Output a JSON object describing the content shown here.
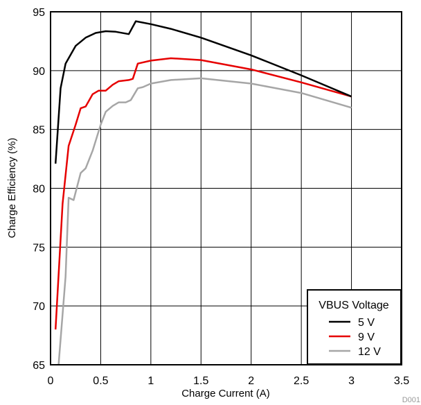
{
  "chart_data": {
    "type": "line",
    "xlabel": "Charge Current (A)",
    "ylabel": "Charge Efficiency (%)",
    "xlim": [
      0,
      3.5
    ],
    "ylim": [
      65,
      95
    ],
    "xticks": [
      "0",
      "0.5",
      "1",
      "1.5",
      "2",
      "2.5",
      "3",
      "3.5"
    ],
    "yticks": [
      "65",
      "70",
      "75",
      "80",
      "85",
      "90",
      "95"
    ],
    "grid": true,
    "legend_position": "bottom-right",
    "legend_title": "VBUS Voltage",
    "figure_id": "D001",
    "series": [
      {
        "name": "5 V",
        "color": "#000000",
        "points": [
          [
            0.05,
            82.1
          ],
          [
            0.1,
            88.5
          ],
          [
            0.15,
            90.6
          ],
          [
            0.25,
            92.1
          ],
          [
            0.35,
            92.8
          ],
          [
            0.45,
            93.2
          ],
          [
            0.55,
            93.35
          ],
          [
            0.65,
            93.3
          ],
          [
            0.78,
            93.1
          ],
          [
            0.85,
            94.2
          ],
          [
            1.0,
            93.95
          ],
          [
            1.2,
            93.55
          ],
          [
            1.5,
            92.8
          ],
          [
            2.0,
            91.3
          ],
          [
            2.5,
            89.6
          ],
          [
            3.0,
            87.8
          ]
        ]
      },
      {
        "name": "9 V",
        "color": "#e60000",
        "points": [
          [
            0.05,
            68.0
          ],
          [
            0.12,
            78.7
          ],
          [
            0.18,
            83.6
          ],
          [
            0.25,
            85.4
          ],
          [
            0.3,
            86.8
          ],
          [
            0.35,
            86.95
          ],
          [
            0.42,
            88.0
          ],
          [
            0.48,
            88.3
          ],
          [
            0.55,
            88.3
          ],
          [
            0.62,
            88.8
          ],
          [
            0.68,
            89.1
          ],
          [
            0.78,
            89.2
          ],
          [
            0.82,
            89.3
          ],
          [
            0.87,
            90.6
          ],
          [
            1.0,
            90.85
          ],
          [
            1.2,
            91.05
          ],
          [
            1.5,
            90.9
          ],
          [
            2.0,
            90.1
          ],
          [
            2.5,
            89.0
          ],
          [
            3.0,
            87.8
          ]
        ]
      },
      {
        "name": "12 V",
        "color": "#a6a6a6",
        "points": [
          [
            0.08,
            65.0
          ],
          [
            0.15,
            72.5
          ],
          [
            0.18,
            79.2
          ],
          [
            0.23,
            79.0
          ],
          [
            0.3,
            81.3
          ],
          [
            0.35,
            81.7
          ],
          [
            0.42,
            83.2
          ],
          [
            0.5,
            85.4
          ],
          [
            0.55,
            86.5
          ],
          [
            0.62,
            87.0
          ],
          [
            0.68,
            87.3
          ],
          [
            0.75,
            87.3
          ],
          [
            0.8,
            87.5
          ],
          [
            0.87,
            88.5
          ],
          [
            0.92,
            88.6
          ],
          [
            1.0,
            88.9
          ],
          [
            1.2,
            89.2
          ],
          [
            1.5,
            89.35
          ],
          [
            2.0,
            88.9
          ],
          [
            2.5,
            88.1
          ],
          [
            3.0,
            86.85
          ]
        ]
      }
    ]
  }
}
